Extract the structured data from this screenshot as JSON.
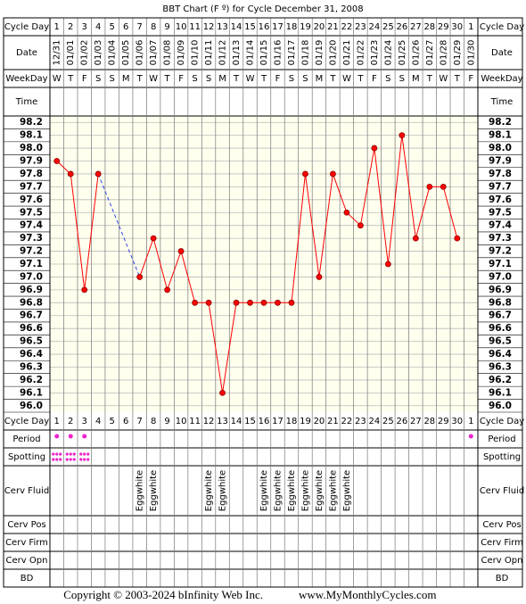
{
  "chart_data": {
    "type": "line",
    "title": "BBT Chart (F º) for Cycle December 31, 2008",
    "row_labels": {
      "cycle_day": "Cycle Day",
      "date": "Date",
      "weekday": "WeekDay",
      "time": "Time",
      "period": "Period",
      "spotting": "Spotting",
      "cerv_fluid": "Cerv Fluid",
      "cerv_pos": "Cerv Pos",
      "cerv_firm": "Cerv Firm",
      "cerv_opn": "Cerv Opn",
      "bd": "BD"
    },
    "categories": [
      1,
      2,
      3,
      4,
      5,
      6,
      7,
      8,
      9,
      10,
      11,
      12,
      13,
      14,
      15,
      16,
      17,
      18,
      19,
      20,
      21,
      22,
      23,
      24,
      25,
      26,
      27,
      28,
      29,
      30,
      1
    ],
    "dates": [
      "12/31",
      "01/01",
      "01/02",
      "01/03",
      "01/04",
      "01/05",
      "01/06",
      "01/07",
      "01/08",
      "01/09",
      "01/10",
      "01/11",
      "01/12",
      "01/13",
      "01/14",
      "01/15",
      "01/16",
      "01/17",
      "01/18",
      "01/19",
      "01/20",
      "01/21",
      "01/22",
      "01/23",
      "01/24",
      "01/25",
      "01/26",
      "01/27",
      "01/28",
      "01/29",
      "01/30"
    ],
    "weekdays": [
      "W",
      "T",
      "F",
      "S",
      "S",
      "M",
      "T",
      "W",
      "T",
      "F",
      "S",
      "S",
      "M",
      "T",
      "W",
      "T",
      "F",
      "S",
      "S",
      "M",
      "T",
      "W",
      "T",
      "F",
      "S",
      "S",
      "M",
      "T",
      "W",
      "T",
      "F"
    ],
    "values": [
      97.9,
      97.8,
      96.9,
      97.8,
      null,
      null,
      97.0,
      97.3,
      96.9,
      97.2,
      96.8,
      96.8,
      96.1,
      96.8,
      96.8,
      96.8,
      96.8,
      96.8,
      97.8,
      97.0,
      97.8,
      97.5,
      97.4,
      98.0,
      97.1,
      98.1,
      97.3,
      97.7,
      97.7,
      97.3,
      null
    ],
    "color": "#ff0000",
    "ylim": [
      96.0,
      98.2
    ],
    "yticks": [
      {
        "value": 96.0,
        "label": "96.0"
      },
      96.1,
      96.2,
      96.3,
      96.4,
      96.5,
      96.6,
      96.7,
      96.8,
      96.9,
      {
        "value": 97.0,
        "label": "97.0"
      },
      97.1,
      97.2,
      97.3,
      97.4,
      97.5,
      97.6,
      97.7,
      97.8,
      97.9,
      {
        "value": 98.0,
        "label": "98.0"
      },
      98.1,
      98.2
    ],
    "grid": true,
    "period": [
      true,
      true,
      true,
      false,
      false,
      false,
      false,
      false,
      false,
      false,
      false,
      false,
      false,
      false,
      false,
      false,
      false,
      false,
      false,
      false,
      false,
      false,
      false,
      false,
      false,
      false,
      false,
      false,
      false,
      false,
      true
    ],
    "spotting": [
      true,
      true,
      true,
      false,
      false,
      false,
      false,
      false,
      false,
      false,
      false,
      false,
      false,
      false,
      false,
      false,
      false,
      false,
      false,
      false,
      false,
      false,
      false,
      false,
      false,
      false,
      false,
      false,
      false,
      false,
      false
    ],
    "cerv_fluid": [
      null,
      null,
      null,
      null,
      null,
      null,
      "Eggwhite",
      "Eggwhite",
      null,
      null,
      null,
      "Eggwhite",
      "Eggwhite",
      null,
      null,
      "Eggwhite",
      "Eggwhite",
      "Eggwhite",
      "Eggwhite",
      "Eggwhite",
      "Eggwhite",
      "Eggwhite",
      null,
      null,
      null,
      null,
      null,
      null,
      null,
      null,
      null
    ],
    "marker_color": "#ee22cc"
  },
  "footer": {
    "copyright": "Copyright © 2003-2024 bInfinity Web Inc.",
    "site": "www.MyMonthlyCycles.com"
  }
}
